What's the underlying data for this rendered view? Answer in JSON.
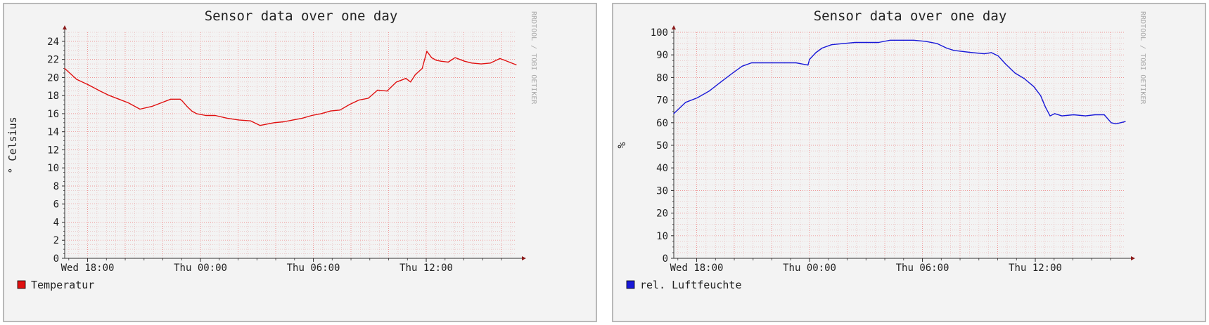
{
  "chart_data": [
    {
      "type": "line",
      "title": "Sensor data over one day",
      "xlabel": "",
      "ylabel": "° Celsius",
      "ylim": [
        0,
        25
      ],
      "xlim": [
        "Wed 16:47",
        "Thu 16:47"
      ],
      "yticks": [
        "0",
        "2",
        "4",
        "6",
        "8",
        "10",
        "12",
        "14",
        "16",
        "18",
        "20",
        "22",
        "24"
      ],
      "xticks": [
        "Wed 18:00",
        "Thu 00:00",
        "Thu 06:00",
        "Thu 12:00"
      ],
      "grid": true,
      "watermark": "RRDTOOL / TOBI OETIKER",
      "legend_position": "bottom-left",
      "color": "#e01010",
      "series": [
        {
          "name": "Temperatur",
          "x": [
            "Wed 16:47",
            "Wed 17:25",
            "Wed 18:02",
            "Wed 18:40",
            "Wed 19:10",
            "Wed 19:40",
            "Wed 20:10",
            "Wed 20:47",
            "Wed 21:25",
            "Wed 21:55",
            "Wed 22:25",
            "Wed 22:55",
            "Wed 23:02",
            "Wed 23:17",
            "Wed 23:32",
            "Wed 23:47",
            "Thu 00:17",
            "Thu 00:47",
            "Thu 01:25",
            "Thu 02:02",
            "Thu 02:40",
            "Thu 03:10",
            "Thu 03:25",
            "Thu 03:55",
            "Thu 04:25",
            "Thu 04:55",
            "Thu 05:25",
            "Thu 05:55",
            "Thu 06:25",
            "Thu 06:55",
            "Thu 07:25",
            "Thu 07:55",
            "Thu 08:25",
            "Thu 08:55",
            "Thu 09:25",
            "Thu 09:55",
            "Thu 10:10",
            "Thu 10:25",
            "Thu 10:40",
            "Thu 10:55",
            "Thu 11:10",
            "Thu 11:25",
            "Thu 11:47",
            "Thu 12:02",
            "Thu 12:17",
            "Thu 12:32",
            "Thu 12:47",
            "Thu 13:10",
            "Thu 13:32",
            "Thu 14:02",
            "Thu 14:25",
            "Thu 14:55",
            "Thu 15:25",
            "Thu 15:55",
            "Thu 16:10",
            "Thu 16:25",
            "Thu 16:47"
          ],
          "y": [
            21.0,
            19.8,
            19.2,
            18.5,
            18.0,
            17.6,
            17.2,
            16.5,
            16.8,
            17.2,
            17.6,
            17.6,
            17.4,
            16.8,
            16.3,
            16.0,
            15.8,
            15.8,
            15.5,
            15.3,
            15.2,
            14.7,
            14.8,
            15.0,
            15.1,
            15.3,
            15.5,
            15.8,
            16.0,
            16.3,
            16.4,
            17.0,
            17.5,
            17.7,
            18.6,
            18.5,
            19.0,
            19.5,
            19.7,
            19.9,
            19.5,
            20.3,
            21.0,
            22.9,
            22.2,
            21.9,
            21.8,
            21.7,
            22.2,
            21.8,
            21.6,
            21.5,
            21.6,
            22.1,
            21.9,
            21.7,
            21.4
          ]
        }
      ]
    },
    {
      "type": "line",
      "title": "Sensor data over one day",
      "xlabel": "",
      "ylabel": "%",
      "ylim": [
        0,
        100
      ],
      "xlim": [
        "Wed 16:47",
        "Thu 16:47"
      ],
      "yticks": [
        "0",
        "10",
        "20",
        "30",
        "40",
        "50",
        "60",
        "70",
        "80",
        "90",
        "100"
      ],
      "xticks": [
        "Wed 18:00",
        "Thu 00:00",
        "Thu 06:00",
        "Thu 12:00"
      ],
      "grid": true,
      "watermark": "RRDTOOL / TOBI OETIKER",
      "legend_position": "bottom-left",
      "color": "#1818d8",
      "series": [
        {
          "name": "rel. Luftfeuchte",
          "x": [
            "Wed 16:47",
            "Wed 17:25",
            "Wed 18:02",
            "Wed 18:40",
            "Wed 19:17",
            "Wed 19:55",
            "Wed 20:25",
            "Wed 20:55",
            "Wed 21:25",
            "Wed 22:02",
            "Wed 22:40",
            "Wed 23:17",
            "Wed 23:55",
            "Thu 00:00",
            "Thu 00:20",
            "Thu 00:40",
            "Thu 01:10",
            "Thu 01:47",
            "Thu 02:25",
            "Thu 03:02",
            "Thu 03:40",
            "Thu 04:17",
            "Thu 04:55",
            "Thu 05:32",
            "Thu 06:10",
            "Thu 06:47",
            "Thu 07:17",
            "Thu 07:40",
            "Thu 08:10",
            "Thu 08:40",
            "Thu 09:17",
            "Thu 09:40",
            "Thu 10:02",
            "Thu 10:25",
            "Thu 10:55",
            "Thu 11:25",
            "Thu 11:55",
            "Thu 12:17",
            "Thu 12:32",
            "Thu 12:47",
            "Thu 13:02",
            "Thu 13:25",
            "Thu 14:02",
            "Thu 14:40",
            "Thu 15:10",
            "Thu 15:40",
            "Thu 16:02",
            "Thu 16:17",
            "Thu 16:47"
          ],
          "y": [
            64,
            69,
            71,
            74,
            78,
            82,
            85,
            86.5,
            86.5,
            86.5,
            86.5,
            86.5,
            85.5,
            88,
            91,
            93,
            94.5,
            95,
            95.5,
            95.5,
            95.5,
            96.5,
            96.5,
            96.5,
            96,
            95,
            93,
            92,
            91.5,
            91,
            90.5,
            91,
            89.5,
            86,
            82,
            79.5,
            76,
            72,
            67,
            63,
            64,
            63,
            63.5,
            63,
            63.5,
            63.5,
            60,
            59.5,
            60.5
          ]
        }
      ]
    }
  ]
}
